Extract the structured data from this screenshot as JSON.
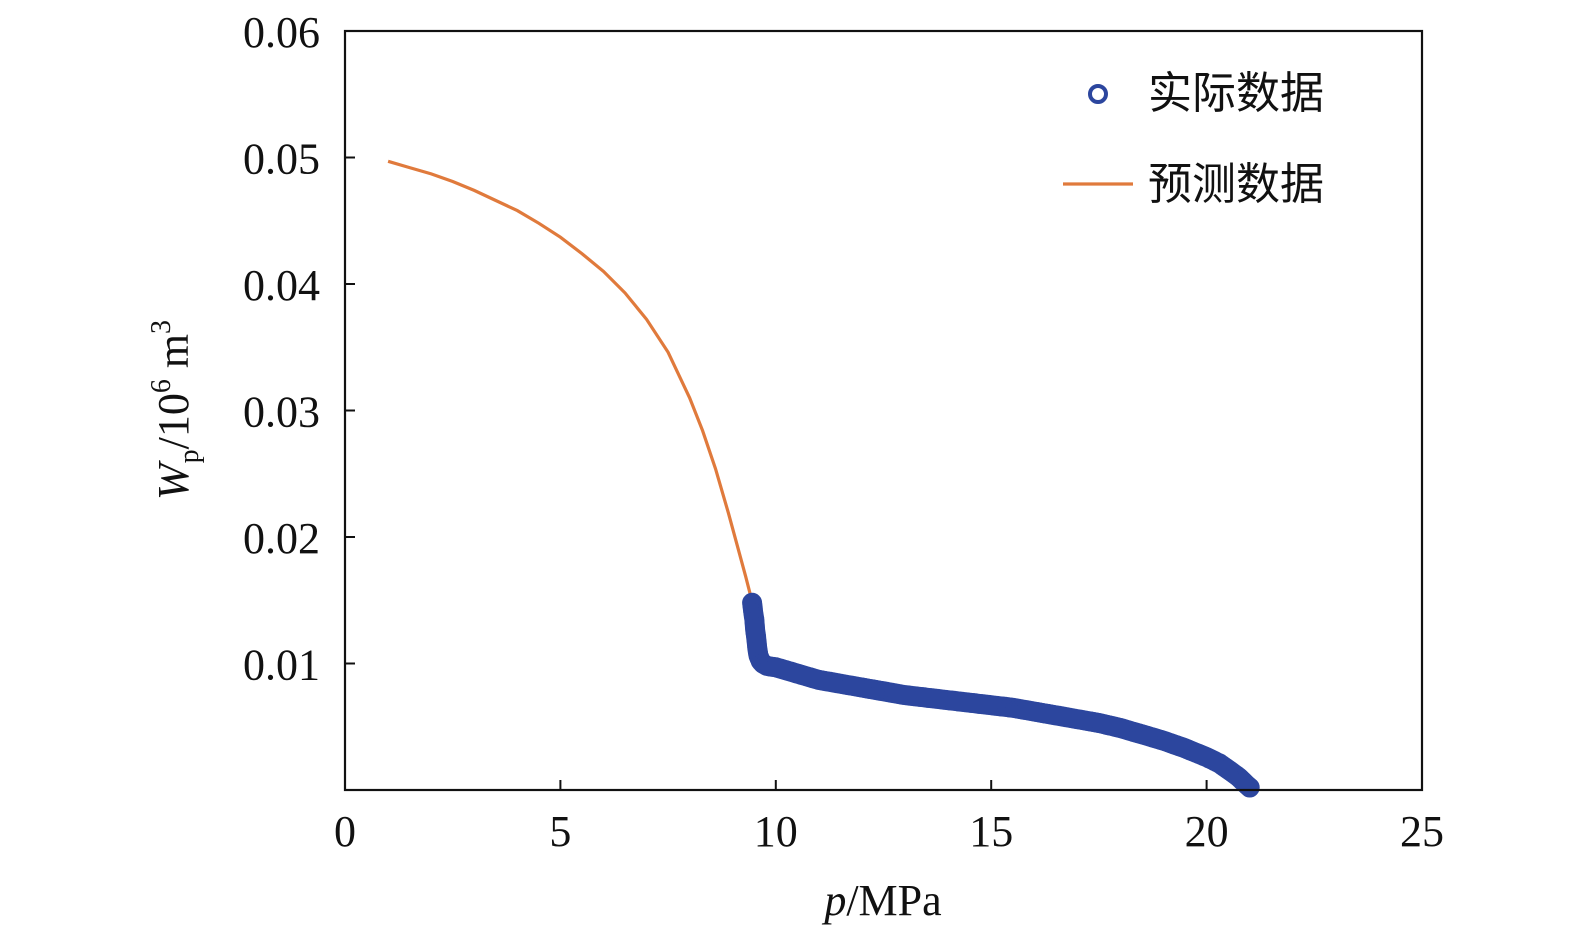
{
  "colors": {
    "actual": "#2c469e",
    "predicted": "#e07a3c",
    "axis": "#111111"
  },
  "chart_data": {
    "type": "scatter",
    "xlim": [
      0,
      25
    ],
    "ylim": [
      0,
      0.06
    ],
    "xticks": [
      0,
      5,
      10,
      15,
      20,
      25
    ],
    "yticks": [
      0.01,
      0.02,
      0.03,
      0.04,
      0.05,
      0.06
    ],
    "xtick_labels": [
      "0",
      "5",
      "10",
      "15",
      "20",
      "25"
    ],
    "ytick_labels": [
      "0.01",
      "0.02",
      "0.03",
      "0.04",
      "0.05",
      "0.06"
    ],
    "xlabel": {
      "var": "p",
      "unit": "/MPa"
    },
    "ylabel": {
      "var": "W",
      "sub": "p",
      "unit": "/10",
      "exp1": "6",
      "unit2": " m",
      "exp2": "3"
    },
    "grid": false,
    "legend_position": "top-right",
    "series": [
      {
        "name": "实际数据",
        "kind": "markers",
        "x": [
          9.45,
          9.47,
          9.5,
          9.52,
          9.55,
          9.57,
          9.6,
          9.65,
          9.7,
          9.8,
          10.0,
          10.3,
          10.6,
          11.0,
          11.5,
          12.0,
          12.5,
          13.0,
          13.5,
          14.0,
          14.5,
          15.0,
          15.5,
          16.0,
          16.5,
          17.0,
          17.5,
          18.0,
          18.5,
          19.0,
          19.5,
          20.0,
          20.3,
          20.55,
          20.75,
          20.9,
          21.0
        ],
        "y": [
          0.0148,
          0.0142,
          0.0135,
          0.0127,
          0.0119,
          0.0112,
          0.0106,
          0.0102,
          0.01,
          0.0098,
          0.0097,
          0.0094,
          0.0091,
          0.0087,
          0.0084,
          0.0081,
          0.0078,
          0.0075,
          0.0073,
          0.0071,
          0.0069,
          0.0067,
          0.0065,
          0.0062,
          0.0059,
          0.0056,
          0.0053,
          0.0049,
          0.0044,
          0.0039,
          0.0033,
          0.0026,
          0.0021,
          0.0015,
          0.001,
          0.0005,
          0.0002
        ]
      },
      {
        "name": "预测数据",
        "kind": "line",
        "x": [
          1.0,
          1.5,
          2.0,
          2.5,
          3.0,
          3.5,
          4.0,
          4.5,
          5.0,
          5.5,
          6.0,
          6.5,
          7.0,
          7.5,
          8.0,
          8.3,
          8.6,
          8.9,
          9.1,
          9.3,
          9.45
        ],
        "y": [
          0.0497,
          0.0492,
          0.0487,
          0.0481,
          0.0474,
          0.0466,
          0.0458,
          0.0448,
          0.0437,
          0.0424,
          0.041,
          0.0393,
          0.0372,
          0.0346,
          0.031,
          0.0284,
          0.0254,
          0.0219,
          0.0194,
          0.0169,
          0.0149
        ]
      }
    ]
  }
}
